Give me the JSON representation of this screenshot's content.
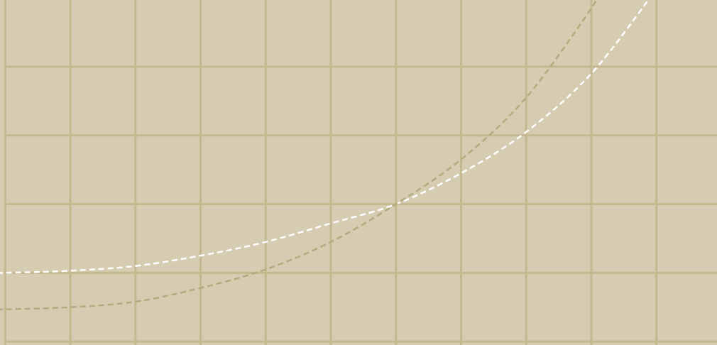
{
  "colors": {
    "background": "#d5ccb1",
    "grid": "#c4b88f",
    "series_white": "#ffffff",
    "series_olive": "#b3aa7e"
  },
  "chart_data": {
    "type": "line",
    "title": "",
    "xlabel": "",
    "ylabel": "",
    "grid": true,
    "legend": "none",
    "x_gridlines": [
      0,
      1,
      2,
      3,
      4,
      5,
      6,
      7,
      8,
      9,
      10
    ],
    "y_gridlines": [
      0,
      1,
      2,
      3,
      4,
      5
    ],
    "xlim": [
      -0.08,
      10.93
    ],
    "ylim": [
      -0.05,
      4.97
    ],
    "series": [
      {
        "line_style": "dashed",
        "color": "#ffffff",
        "x": [
          -0.08,
          0,
          1,
          2,
          3,
          4,
          5,
          6,
          7,
          8,
          9,
          9.9
        ],
        "y": [
          1.0,
          1.0,
          1.03,
          1.1,
          1.25,
          1.45,
          1.72,
          2.0,
          2.45,
          3.05,
          3.9,
          5.0
        ]
      },
      {
        "line_style": "dashed",
        "color": "#b3aa7e",
        "x": [
          -0.08,
          0,
          1,
          2,
          3,
          4,
          5,
          6,
          7,
          8,
          9,
          9.05
        ],
        "y": [
          0.47,
          0.47,
          0.5,
          0.58,
          0.78,
          1.05,
          1.45,
          2.0,
          2.65,
          3.55,
          4.85,
          5.0
        ]
      }
    ]
  }
}
